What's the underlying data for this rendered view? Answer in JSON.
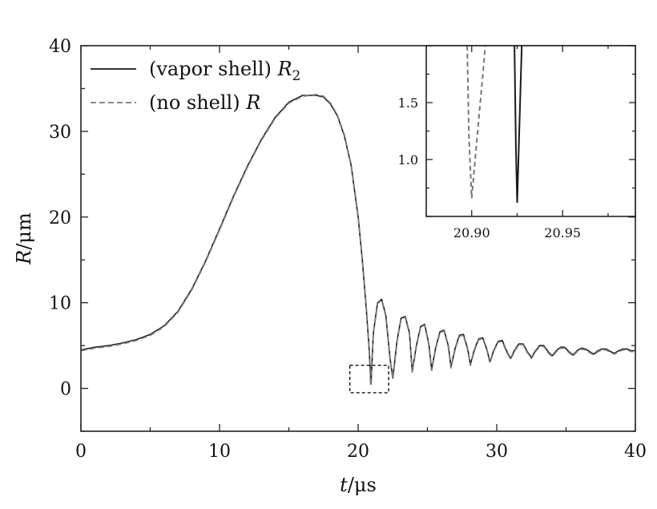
{
  "chart_data": [
    {
      "type": "line",
      "xlabel": {
        "var": "t",
        "unit": "/μs"
      },
      "ylabel": {
        "var": "R",
        "unit": "/μm"
      },
      "xlim": [
        0,
        40
      ],
      "ylim": [
        -5,
        40
      ],
      "xticks": [
        0,
        10,
        20,
        30,
        40
      ],
      "yticks": [
        0,
        10,
        20,
        30,
        40
      ],
      "xtick_labels": [
        "0",
        "10",
        "20",
        "30",
        "40"
      ],
      "ytick_labels": [
        "0",
        "10",
        "20",
        "30",
        "40"
      ],
      "grid": false,
      "legend_position": "top-left",
      "series": [
        {
          "name": "(vapor shell) R",
          "name_text": "(vapor shell) ",
          "name_var": "R",
          "name_sub": "2",
          "style": "solid",
          "color": "#1a1a1a",
          "x": [
            0,
            1,
            2,
            3,
            4,
            5,
            6,
            7,
            8,
            9,
            10,
            11,
            12,
            13,
            14,
            15,
            16,
            17,
            17.5,
            18,
            18.5,
            19,
            19.5,
            20,
            20.3,
            20.6,
            20.8,
            20.93,
            21.1,
            21.4,
            21.7,
            22.0,
            22.3,
            22.5,
            22.8,
            23.1,
            23.4,
            23.7,
            23.9,
            24.2,
            24.5,
            24.8,
            25.1,
            25.3,
            25.6,
            25.9,
            26.2,
            26.5,
            26.7,
            27.0,
            27.3,
            27.6,
            27.9,
            28.1,
            28.4,
            28.7,
            29.0,
            29.3,
            29.5,
            29.8,
            30.1,
            30.4,
            30.7,
            31.0,
            31.3,
            31.6,
            31.9,
            32.2,
            32.5,
            32.8,
            33.1,
            33.4,
            33.7,
            34.0,
            34.3,
            34.6,
            34.9,
            35.2,
            35.5,
            35.8,
            36.1,
            36.4,
            36.7,
            37.0,
            37.3,
            37.6,
            37.9,
            38.2,
            38.5,
            38.8,
            39.1,
            39.4,
            39.7,
            40.0
          ],
          "y": [
            4.5,
            4.8,
            5.0,
            5.3,
            5.7,
            6.3,
            7.3,
            9.0,
            11.6,
            14.9,
            18.6,
            22.4,
            25.9,
            29.0,
            31.6,
            33.4,
            34.2,
            34.2,
            34.0,
            33.2,
            31.8,
            29.5,
            26.0,
            20.0,
            15.0,
            9.0,
            4.5,
            0.5,
            6.5,
            10.0,
            10.4,
            8.5,
            3.5,
            1.2,
            5.5,
            8.2,
            8.4,
            6.5,
            2.0,
            5.0,
            7.2,
            7.5,
            5.2,
            2.2,
            4.8,
            6.6,
            6.8,
            5.0,
            2.5,
            4.7,
            6.2,
            6.3,
            4.6,
            2.8,
            4.6,
            5.8,
            5.9,
            4.5,
            3.1,
            4.5,
            5.5,
            5.6,
            4.4,
            3.5,
            4.5,
            5.2,
            5.2,
            4.3,
            3.6,
            4.4,
            5.0,
            5.0,
            4.3,
            3.8,
            4.4,
            4.8,
            4.8,
            4.3,
            3.9,
            4.4,
            4.7,
            4.6,
            4.3,
            4.0,
            4.4,
            4.6,
            4.6,
            4.3,
            4.1,
            4.4,
            4.6,
            4.6,
            4.4,
            4.4
          ]
        },
        {
          "name": "(no shell) R",
          "name_text": "(no shell) ",
          "name_var": "R",
          "name_sub": "",
          "style": "dashed",
          "color": "#777777",
          "x": [
            0,
            1,
            2,
            3,
            4,
            5,
            6,
            7,
            8,
            9,
            10,
            11,
            12,
            13,
            14,
            15,
            16,
            17,
            17.5,
            18,
            18.5,
            19,
            19.5,
            20,
            20.3,
            20.6,
            20.8,
            20.9,
            21.1,
            21.4,
            21.7,
            22.0,
            22.3,
            22.5,
            22.8,
            23.1,
            23.4,
            23.7,
            23.9,
            24.2,
            24.5,
            24.8,
            25.1,
            25.3,
            25.6,
            25.9,
            26.2,
            26.5,
            26.7,
            27.0,
            27.3,
            27.6,
            27.9,
            28.1,
            28.4,
            28.7,
            29.0,
            29.3,
            29.5,
            29.8,
            30.1,
            30.4,
            30.7,
            31.0,
            31.3,
            31.6,
            31.9,
            32.2,
            32.5,
            32.8,
            33.1,
            33.4,
            33.7,
            34.0,
            34.3,
            34.6,
            34.9,
            35.2,
            35.5,
            35.8,
            36.1,
            36.4,
            36.7,
            37.0,
            37.3,
            37.6,
            37.9,
            38.2,
            38.5,
            38.8,
            39.1,
            39.4,
            39.7,
            40.0
          ],
          "y": [
            4.4,
            4.7,
            4.9,
            5.2,
            5.6,
            6.2,
            7.2,
            8.9,
            11.5,
            14.8,
            18.5,
            22.3,
            25.8,
            28.9,
            31.5,
            33.3,
            34.1,
            34.3,
            34.1,
            33.3,
            31.9,
            29.6,
            26.1,
            20.1,
            15.1,
            9.1,
            4.6,
            0.4,
            6.4,
            9.9,
            10.3,
            8.4,
            3.4,
            1.1,
            5.4,
            8.1,
            8.3,
            6.4,
            1.9,
            4.9,
            7.1,
            7.4,
            5.1,
            2.1,
            4.7,
            6.5,
            6.7,
            4.9,
            2.4,
            4.6,
            6.1,
            6.2,
            4.5,
            2.7,
            4.5,
            5.7,
            5.8,
            4.4,
            3.0,
            4.4,
            5.4,
            5.5,
            4.3,
            3.4,
            4.4,
            5.1,
            5.1,
            4.2,
            3.5,
            4.3,
            4.9,
            4.9,
            4.2,
            3.7,
            4.3,
            4.7,
            4.7,
            4.2,
            3.8,
            4.3,
            4.6,
            4.5,
            4.2,
            3.9,
            4.3,
            4.5,
            4.5,
            4.2,
            4.0,
            4.3,
            4.5,
            4.5,
            4.3,
            4.3
          ]
        }
      ],
      "zoom_box": {
        "xlim": [
          19.4,
          22.2
        ],
        "ylim": [
          -0.5,
          2.7
        ]
      }
    },
    {
      "type": "line",
      "role": "inset",
      "xlim": [
        20.875,
        20.99
      ],
      "ylim": [
        0.5,
        2.0
      ],
      "xticks": [
        20.9,
        20.95
      ],
      "yticks": [
        1.0,
        1.5
      ],
      "xtick_labels": [
        "20.90",
        "20.95"
      ],
      "ytick_labels": [
        "1.0",
        "1.5"
      ],
      "series": [
        {
          "name": "(no shell) R",
          "style": "dashed",
          "color": "#777777",
          "x": [
            20.8975,
            20.8985,
            20.9,
            20.9075
          ],
          "y": [
            2.0,
            1.2,
            0.66,
            2.0
          ]
        },
        {
          "name": "(vapor shell) R2",
          "style": "solid",
          "color": "#1a1a1a",
          "x": [
            20.9235,
            20.9243,
            20.925,
            20.9275
          ],
          "y": [
            2.0,
            1.1,
            0.62,
            2.0
          ]
        }
      ]
    }
  ]
}
